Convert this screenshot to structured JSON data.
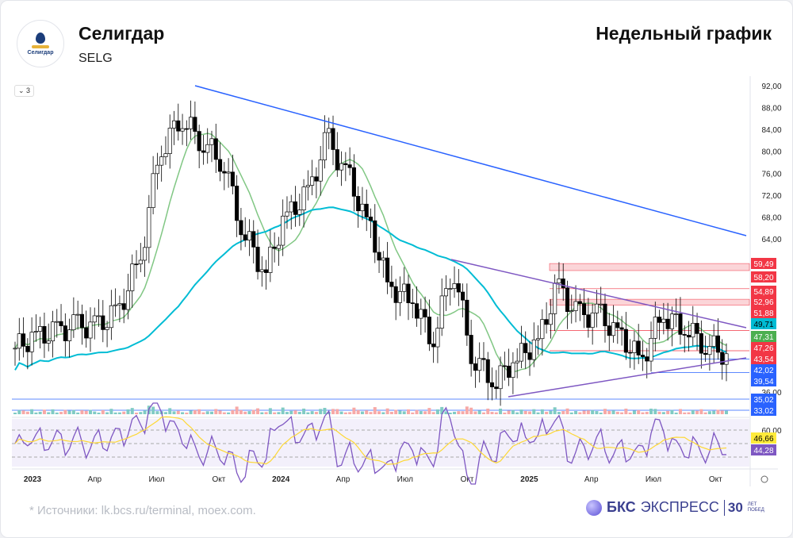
{
  "header": {
    "company": "Селигдар",
    "ticker": "SELG",
    "logo_text": "Селигдар",
    "chart_type": "Недельный график",
    "indicator_count": "3"
  },
  "footer": {
    "source": "*  Источники: lk.bcs.ru/terminal, moex.com.",
    "brand_main": "БКС",
    "brand_second": "ЭКСПРЕСС",
    "brand_years": "30",
    "brand_tag1": "ЛЕТ",
    "brand_tag2": "ПОБЕД"
  },
  "chart_data": {
    "type": "candlestick",
    "interval": "weekly",
    "y_ticks": [
      "92,00",
      "88,00",
      "84,00",
      "80,00",
      "76,00",
      "72,00",
      "68,00",
      "64,00",
      "36,00"
    ],
    "y_tick_values": [
      92,
      88,
      84,
      80,
      76,
      72,
      68,
      64,
      36
    ],
    "ylim": [
      36,
      92
    ],
    "x_ticks": [
      {
        "label": "2023",
        "bold": true,
        "month": 0
      },
      {
        "label": "Апр",
        "month": 3
      },
      {
        "label": "Июл",
        "month": 6
      },
      {
        "label": "Окт",
        "month": 9
      },
      {
        "label": "2024",
        "bold": true,
        "month": 12
      },
      {
        "label": "Апр",
        "month": 15
      },
      {
        "label": "Июл",
        "month": 18
      },
      {
        "label": "Окт",
        "month": 21
      },
      {
        "label": "2025",
        "bold": true,
        "month": 24
      },
      {
        "label": "Апр",
        "month": 27
      },
      {
        "label": "Июл",
        "month": 30
      },
      {
        "label": "Окт",
        "month": 33
      }
    ],
    "monthly_close": [
      44,
      46,
      47,
      48,
      48,
      51,
      60,
      80,
      86,
      82,
      78,
      65,
      58,
      68,
      72,
      82,
      75,
      66,
      55,
      53,
      46,
      58,
      42,
      38,
      42,
      45,
      55,
      50,
      50,
      46,
      42,
      50,
      48,
      45,
      43
    ],
    "price_labels": [
      {
        "value": "59,49",
        "color": "#f23645"
      },
      {
        "value": "58,20",
        "color": "#f23645"
      },
      {
        "value": "54,89",
        "color": "#f23645"
      },
      {
        "value": "52,96",
        "color": "#f23645"
      },
      {
        "value": "51,88",
        "color": "#f23645"
      },
      {
        "value": "49,71",
        "color": "#00bcd4"
      },
      {
        "value": "47,31",
        "color": "#4caf50"
      },
      {
        "value": "47,26",
        "color": "#f23645"
      },
      {
        "value": "43,54",
        "color": "#f23645"
      },
      {
        "value": "42,02",
        "color": "#2962ff"
      },
      {
        "value": "39,54",
        "color": "#2962ff"
      },
      {
        "value": "35,02",
        "color": "#2962ff"
      },
      {
        "value": "33,02",
        "color": "#2962ff"
      }
    ],
    "rsi": {
      "ticks": [
        "60,00"
      ],
      "labels": [
        {
          "value": "46,66",
          "color": "#ffeb3b",
          "text": "#000"
        },
        {
          "value": "44,28",
          "color": "#7e57c2",
          "text": "#fff"
        }
      ]
    },
    "colors": {
      "up": "#ffffff",
      "down": "#000000",
      "ma_fast": "#81c784",
      "ma_slow": "#00bcd4",
      "trend": "#2962ff",
      "triangle": "#7e57c2",
      "resistance": "#f23645"
    }
  }
}
